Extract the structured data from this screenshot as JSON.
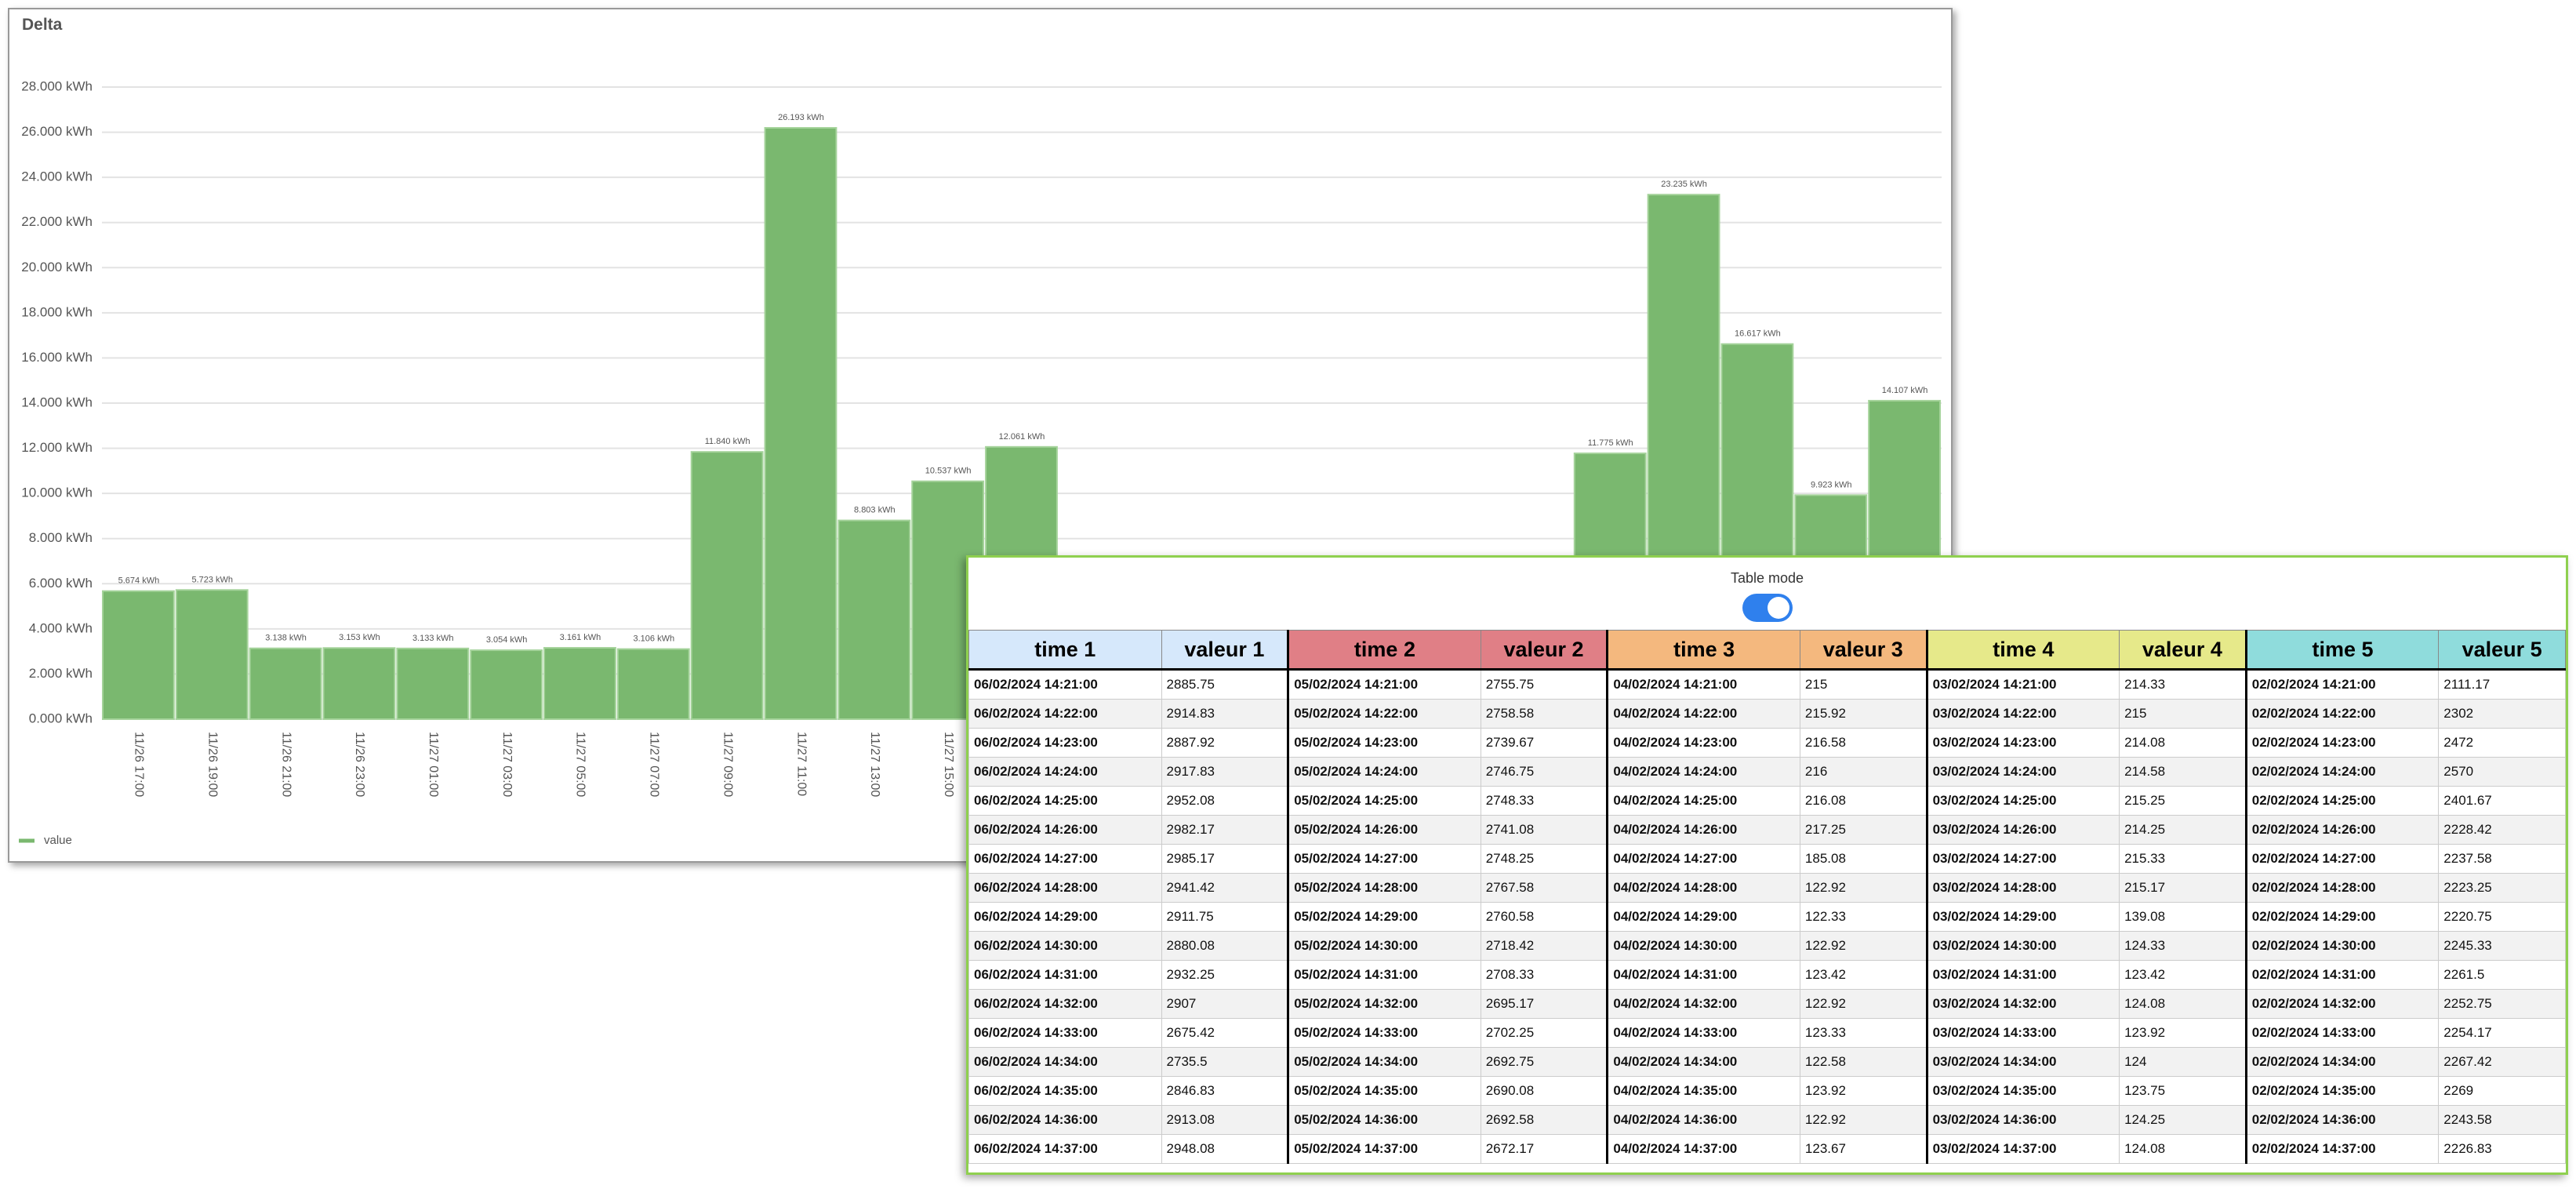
{
  "chart_data": {
    "type": "bar",
    "title": "Delta",
    "categories": [
      "11/26 17:00",
      "11/26 19:00",
      "11/26 21:00",
      "11/26 23:00",
      "11/27 01:00",
      "11/27 03:00",
      "11/27 05:00",
      "11/27 07:00",
      "11/27 09:00",
      "11/27 11:00",
      "11/27 13:00",
      "11/27 15:00",
      null,
      null,
      null,
      null,
      null,
      null,
      null,
      null,
      null,
      null,
      null,
      null,
      null
    ],
    "series": [
      {
        "name": "value",
        "color": "#7ab86f",
        "values": [
          5.674,
          5.723,
          3.138,
          3.153,
          3.133,
          3.054,
          3.161,
          3.106,
          11.84,
          26.193,
          8.803,
          10.537,
          12.061,
          null,
          null,
          null,
          null,
          null,
          null,
          null,
          11.775,
          23.235,
          16.617,
          9.923,
          14.107
        ],
        "value_labels": [
          "5.674 kWh",
          "5.723 kWh",
          "3.138 kWh",
          "3.153 kWh",
          "3.133 kWh",
          "3.054 kWh",
          "3.161 kWh",
          "3.106 kWh",
          "11.840 kWh",
          "26.193 kWh",
          "8.803 kWh",
          "10.537 kWh",
          "12.061 kWh",
          null,
          null,
          null,
          null,
          null,
          null,
          null,
          "11.775 kWh",
          "23.235 kWh",
          "16.617 kWh",
          "9.923 kWh",
          "14.107 kWh"
        ]
      }
    ],
    "ylim": [
      0,
      28
    ],
    "yticks": [
      {
        "value": 0,
        "label": "0.000 kWh"
      },
      {
        "value": 2,
        "label": "2.000 kWh"
      },
      {
        "value": 4,
        "label": "4.000 kWh"
      },
      {
        "value": 6,
        "label": "6.000 kWh"
      },
      {
        "value": 8,
        "label": "8.000 kWh"
      },
      {
        "value": 10,
        "label": "10.000 kWh"
      },
      {
        "value": 12,
        "label": "12.000 kWh"
      },
      {
        "value": 14,
        "label": "14.000 kWh"
      },
      {
        "value": 16,
        "label": "16.000 kWh"
      },
      {
        "value": 18,
        "label": "18.000 kWh"
      },
      {
        "value": 20,
        "label": "20.000 kWh"
      },
      {
        "value": 22,
        "label": "22.000 kWh"
      },
      {
        "value": 24,
        "label": "24.000 kWh"
      },
      {
        "value": 26,
        "label": "26.000 kWh"
      },
      {
        "value": 28,
        "label": "28.000 kWh"
      }
    ],
    "grid": true,
    "legend": "bottom-left"
  },
  "table": {
    "title": "Table mode",
    "headers": [
      "time 1",
      "valeur 1",
      "time 2",
      "valeur 2",
      "time 3",
      "valeur 3",
      "time 4",
      "valeur 4",
      "time 5",
      "valeur 5"
    ],
    "rows": [
      [
        "06/02/2024 14:21:00",
        2885.75,
        "05/02/2024 14:21:00",
        2755.75,
        "04/02/2024 14:21:00",
        215,
        "03/02/2024 14:21:00",
        214.33,
        "02/02/2024 14:21:00",
        2111.17
      ],
      [
        "06/02/2024 14:22:00",
        2914.83,
        "05/02/2024 14:22:00",
        2758.58,
        "04/02/2024 14:22:00",
        215.92,
        "03/02/2024 14:22:00",
        215,
        "02/02/2024 14:22:00",
        2302
      ],
      [
        "06/02/2024 14:23:00",
        2887.92,
        "05/02/2024 14:23:00",
        2739.67,
        "04/02/2024 14:23:00",
        216.58,
        "03/02/2024 14:23:00",
        214.08,
        "02/02/2024 14:23:00",
        2472
      ],
      [
        "06/02/2024 14:24:00",
        2917.83,
        "05/02/2024 14:24:00",
        2746.75,
        "04/02/2024 14:24:00",
        216,
        "03/02/2024 14:24:00",
        214.58,
        "02/02/2024 14:24:00",
        2570
      ],
      [
        "06/02/2024 14:25:00",
        2952.08,
        "05/02/2024 14:25:00",
        2748.33,
        "04/02/2024 14:25:00",
        216.08,
        "03/02/2024 14:25:00",
        215.25,
        "02/02/2024 14:25:00",
        2401.67
      ],
      [
        "06/02/2024 14:26:00",
        2982.17,
        "05/02/2024 14:26:00",
        2741.08,
        "04/02/2024 14:26:00",
        217.25,
        "03/02/2024 14:26:00",
        214.25,
        "02/02/2024 14:26:00",
        2228.42
      ],
      [
        "06/02/2024 14:27:00",
        2985.17,
        "05/02/2024 14:27:00",
        2748.25,
        "04/02/2024 14:27:00",
        185.08,
        "03/02/2024 14:27:00",
        215.33,
        "02/02/2024 14:27:00",
        2237.58
      ],
      [
        "06/02/2024 14:28:00",
        2941.42,
        "05/02/2024 14:28:00",
        2767.58,
        "04/02/2024 14:28:00",
        122.92,
        "03/02/2024 14:28:00",
        215.17,
        "02/02/2024 14:28:00",
        2223.25
      ],
      [
        "06/02/2024 14:29:00",
        2911.75,
        "05/02/2024 14:29:00",
        2760.58,
        "04/02/2024 14:29:00",
        122.33,
        "03/02/2024 14:29:00",
        139.08,
        "02/02/2024 14:29:00",
        2220.75
      ],
      [
        "06/02/2024 14:30:00",
        2880.08,
        "05/02/2024 14:30:00",
        2718.42,
        "04/02/2024 14:30:00",
        122.92,
        "03/02/2024 14:30:00",
        124.33,
        "02/02/2024 14:30:00",
        2245.33
      ],
      [
        "06/02/2024 14:31:00",
        2932.25,
        "05/02/2024 14:31:00",
        2708.33,
        "04/02/2024 14:31:00",
        123.42,
        "03/02/2024 14:31:00",
        123.42,
        "02/02/2024 14:31:00",
        2261.5
      ],
      [
        "06/02/2024 14:32:00",
        2907,
        "05/02/2024 14:32:00",
        2695.17,
        "04/02/2024 14:32:00",
        122.92,
        "03/02/2024 14:32:00",
        124.08,
        "02/02/2024 14:32:00",
        2252.75
      ],
      [
        "06/02/2024 14:33:00",
        2675.42,
        "05/02/2024 14:33:00",
        2702.25,
        "04/02/2024 14:33:00",
        123.33,
        "03/02/2024 14:33:00",
        123.92,
        "02/02/2024 14:33:00",
        2254.17
      ],
      [
        "06/02/2024 14:34:00",
        2735.5,
        "05/02/2024 14:34:00",
        2692.75,
        "04/02/2024 14:34:00",
        122.58,
        "03/02/2024 14:34:00",
        124,
        "02/02/2024 14:34:00",
        2267.42
      ],
      [
        "06/02/2024 14:35:00",
        2846.83,
        "05/02/2024 14:35:00",
        2690.08,
        "04/02/2024 14:35:00",
        123.92,
        "03/02/2024 14:35:00",
        123.75,
        "02/02/2024 14:35:00",
        2269
      ],
      [
        "06/02/2024 14:36:00",
        2913.08,
        "05/02/2024 14:36:00",
        2692.58,
        "04/02/2024 14:36:00",
        122.92,
        "03/02/2024 14:36:00",
        124.25,
        "02/02/2024 14:36:00",
        2243.58
      ],
      [
        "06/02/2024 14:37:00",
        2948.08,
        "05/02/2024 14:37:00",
        2672.17,
        "04/02/2024 14:37:00",
        123.67,
        "03/02/2024 14:37:00",
        124.08,
        "02/02/2024 14:37:00",
        2226.83
      ]
    ]
  }
}
